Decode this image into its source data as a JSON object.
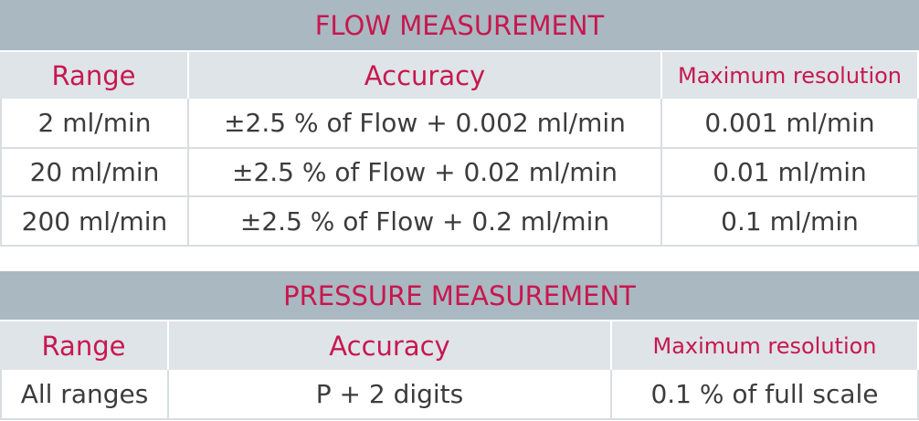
{
  "tables": [
    {
      "title": "FLOW MEASUREMENT",
      "headers": [
        "Range",
        "Accuracy",
        "Maximum resolution"
      ],
      "rows": [
        [
          "2 ml/min",
          "±2.5 % of Flow + 0.002 ml/min",
          "0.001 ml/min"
        ],
        [
          "20 ml/min",
          "±2.5 % of Flow + 0.02 ml/min",
          "0.01 ml/min"
        ],
        [
          "200 ml/min",
          "±2.5 % of Flow + 0.2 ml/min",
          "0.1 ml/min"
        ]
      ]
    },
    {
      "title": "PRESSURE MEASUREMENT",
      "headers": [
        "Range",
        "Accuracy",
        "Maximum resolution"
      ],
      "rows": [
        [
          "All ranges",
          "P + 2 digits",
          "0.1 % of full scale"
        ]
      ]
    }
  ]
}
